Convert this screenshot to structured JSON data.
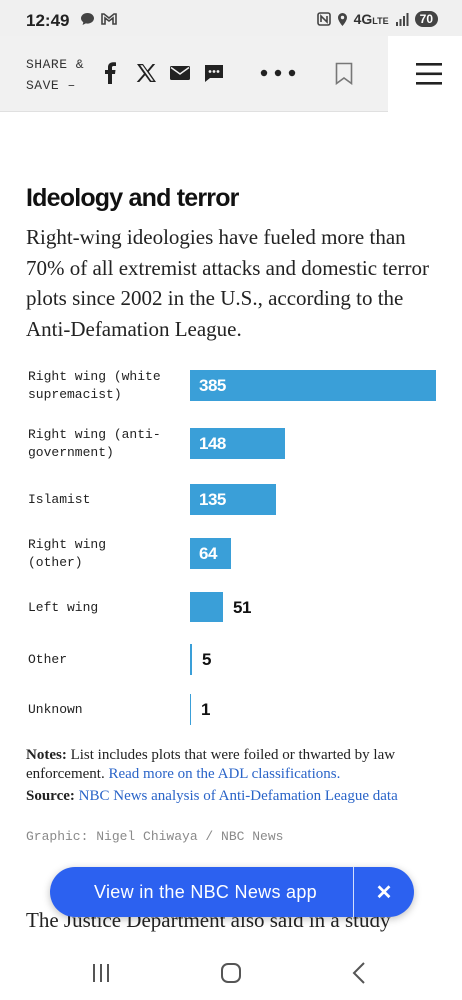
{
  "status": {
    "time": "12:49",
    "network": "4G",
    "network_sub": "LTE",
    "battery": "70"
  },
  "toolbar": {
    "share_line1": "SHARE &",
    "share_line2": "SAVE –"
  },
  "article": {
    "title": "Ideology and terror",
    "dek": "Right-wing ideologies have fueled more than 70% of all extremist attacks and domestic terror plots since 2002 in the U.S., according to the Anti-Defamation League.",
    "notes_label": "Notes:",
    "notes_text": " List includes plots that were foiled or thwarted by law enforcement. ",
    "notes_link": "Read more on the ADL classifications.",
    "source_label": "Source:",
    "source_link": "NBC News analysis of Anti-Defamation League data",
    "credit": "Graphic: Nigel Chiwaya / NBC News",
    "next_paragraph": "The Justice Department also said in a study"
  },
  "chart_data": {
    "type": "bar",
    "orientation": "horizontal",
    "categories": [
      "Right wing (white supremacist)",
      "Right wing (anti-government)",
      "Islamist",
      "Right wing (other)",
      "Left wing",
      "Other",
      "Unknown"
    ],
    "category_lines": [
      [
        "Right wing (white",
        "supremacist)"
      ],
      [
        "Right wing (anti-",
        "government)"
      ],
      [
        "Islamist"
      ],
      [
        "Right wing",
        "(other)"
      ],
      [
        "Left wing"
      ],
      [
        "Other"
      ],
      [
        "Unknown"
      ]
    ],
    "values": [
      385,
      148,
      135,
      64,
      51,
      5,
      1
    ],
    "bar_color": "#3a9fd8"
  },
  "app_banner": {
    "label": "View in the NBC News app",
    "close": "✕"
  }
}
